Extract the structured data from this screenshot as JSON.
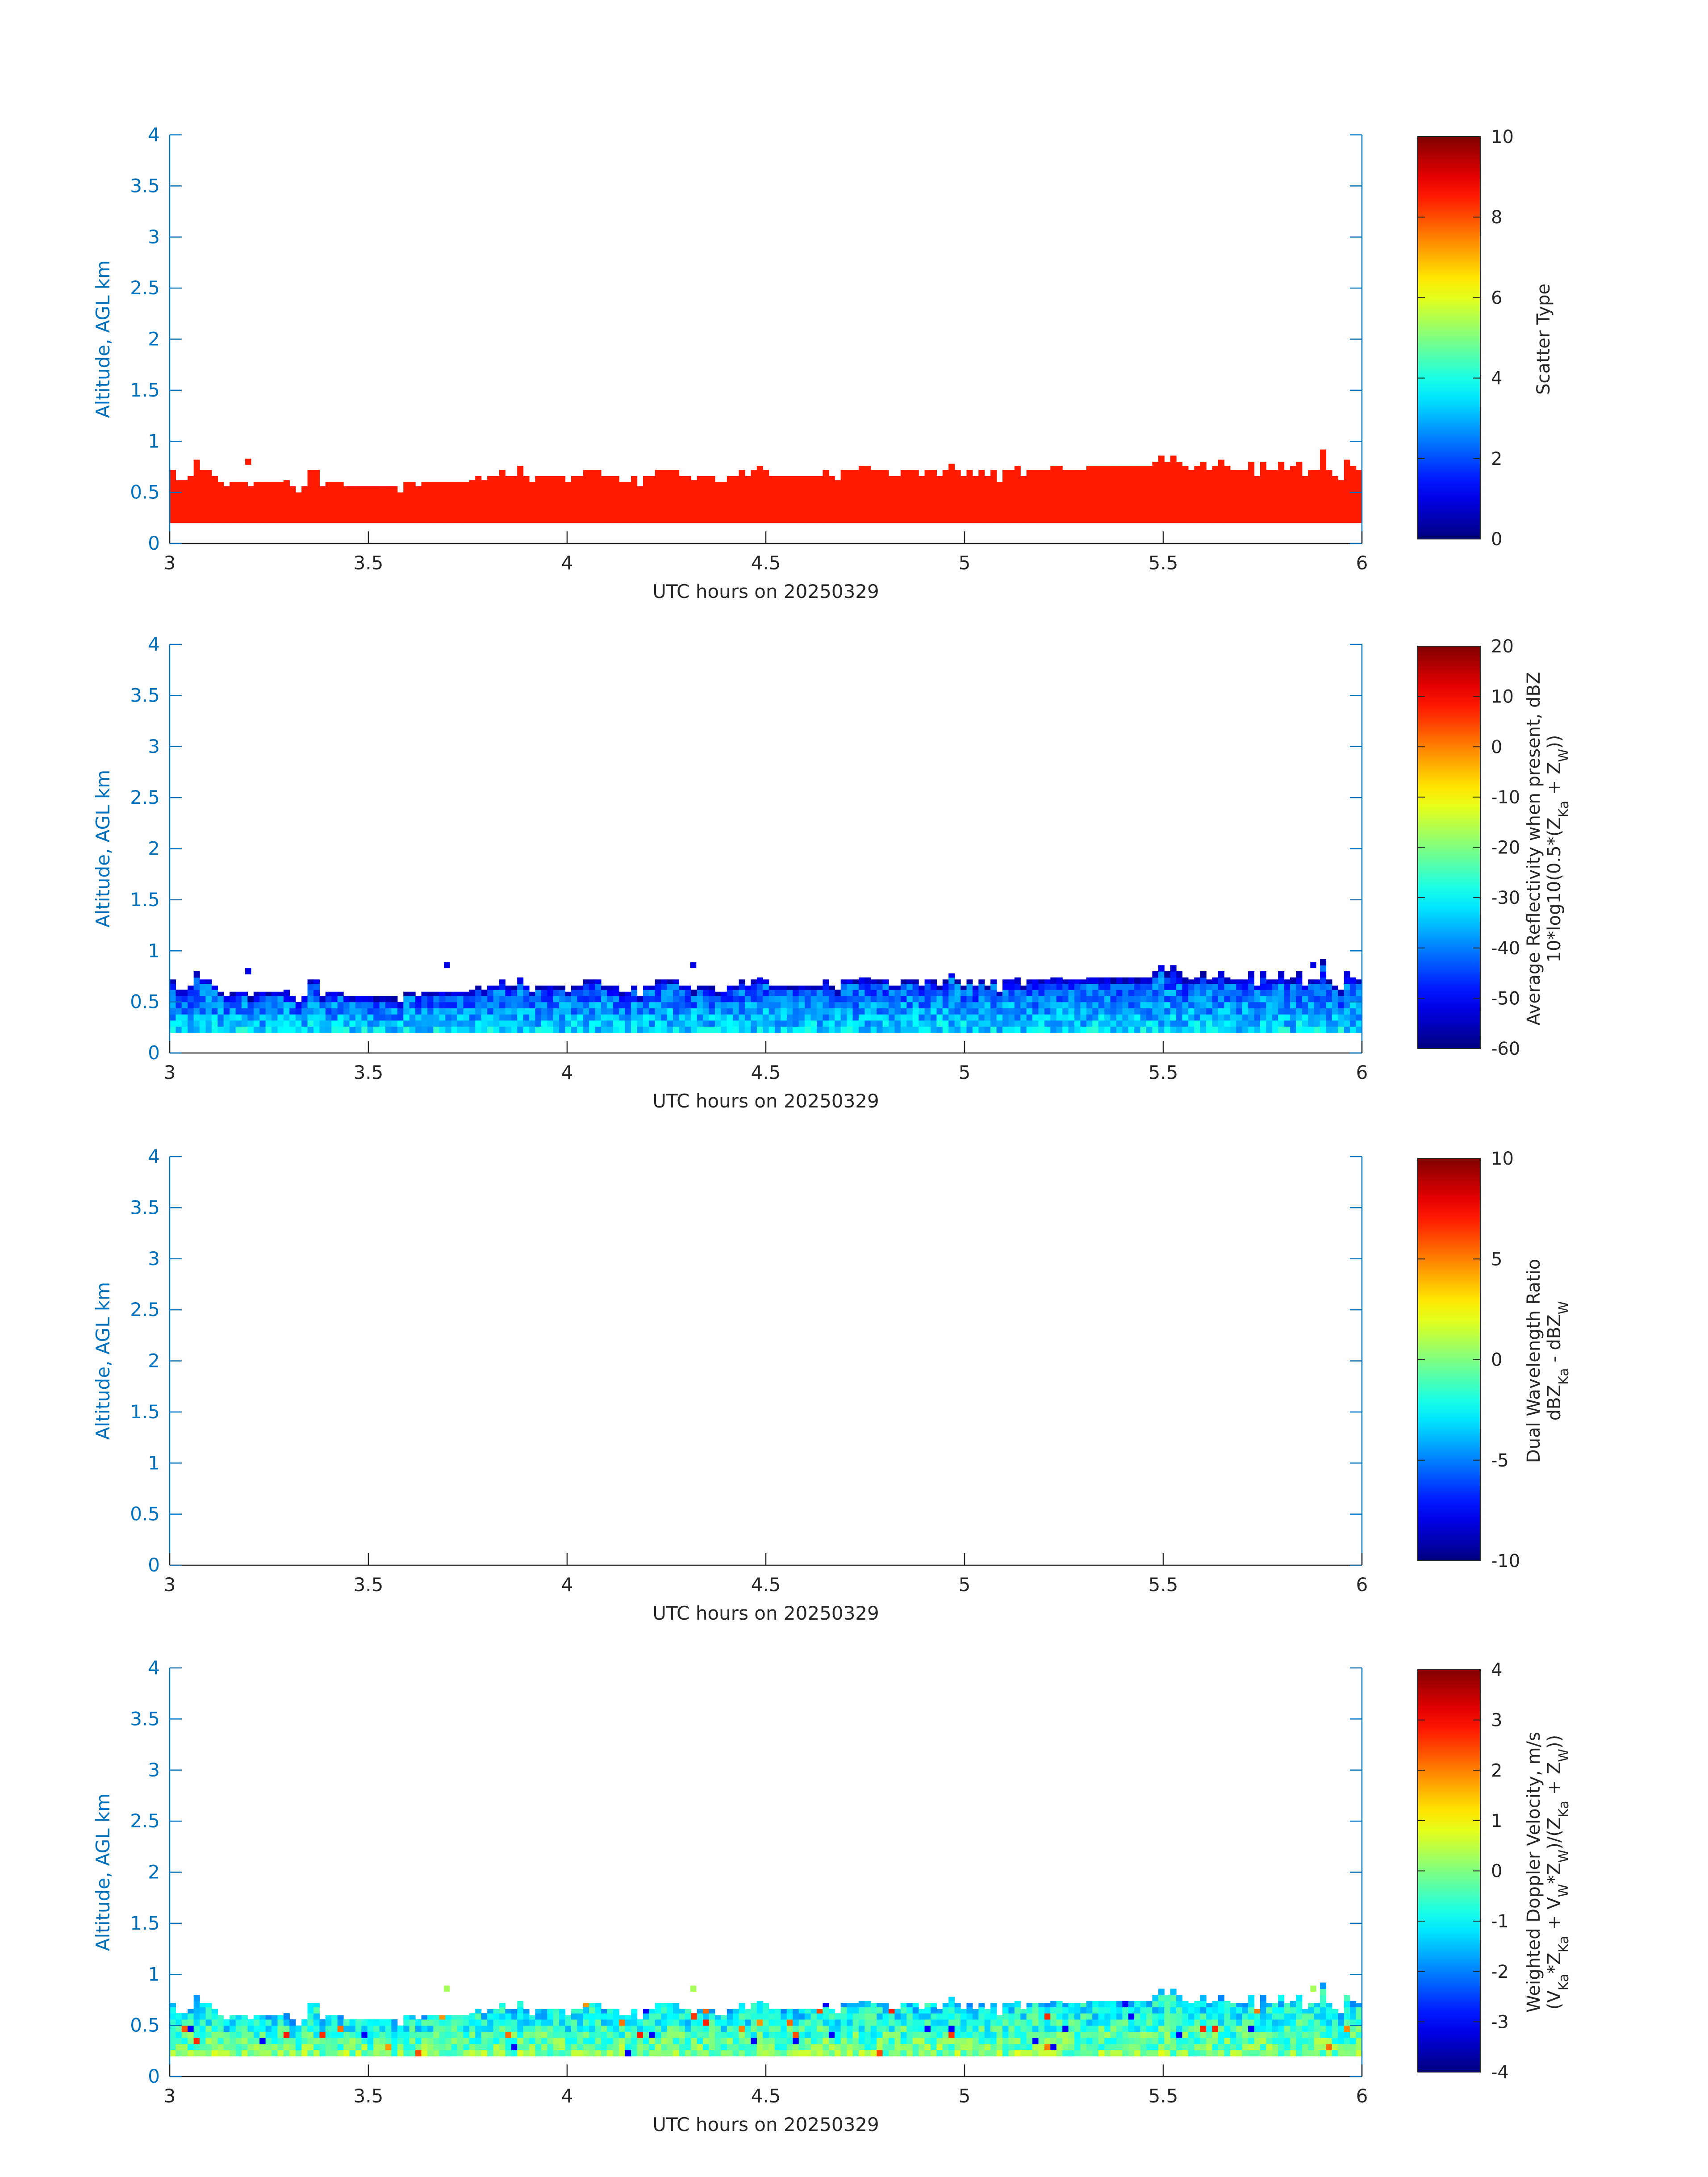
{
  "figure": {
    "panel_count": 4
  },
  "chart_data": [
    {
      "type": "heatmap",
      "xlabel": "UTC hours on 20250329",
      "ylabel": "Altitude, AGL km",
      "xlim": [
        3,
        6
      ],
      "ylim": [
        0,
        4
      ],
      "xticks": [
        "3",
        "3.5",
        "4",
        "4.5",
        "5",
        "5.5",
        "6"
      ],
      "yticks": [
        "0",
        "0.5",
        "1",
        "1.5",
        "2",
        "2.5",
        "3",
        "3.5",
        "4"
      ],
      "colorbar": {
        "label_lines": [
          "Scatter Type"
        ],
        "clim": [
          0,
          10
        ],
        "ticks": [
          "0",
          "2",
          "4",
          "6",
          "8",
          "10"
        ]
      },
      "field": "scatter_type",
      "layer_base_km": 0.2,
      "time_bin_h": 0.02,
      "description_value": 8.5,
      "tops": "cloud_tops",
      "extra_cells": [
        {
          "x": 3.19,
          "y": 0.8
        }
      ]
    },
    {
      "type": "heatmap",
      "xlabel": "UTC hours on 20250329",
      "ylabel": "Altitude, AGL km",
      "xlim": [
        3,
        6
      ],
      "ylim": [
        0,
        4
      ],
      "xticks": [
        "3",
        "3.5",
        "4",
        "4.5",
        "5",
        "5.5",
        "6"
      ],
      "yticks": [
        "0",
        "0.5",
        "1",
        "1.5",
        "2",
        "2.5",
        "3",
        "3.5",
        "4"
      ],
      "colorbar": {
        "label_lines": [
          "Average Reflectivity when present, dBZ",
          "10*log10(0.5*(Z",
          "Ka",
          " + Z",
          "W",
          "))"
        ],
        "clim": [
          -60,
          20
        ],
        "ticks": [
          "-60",
          "-50",
          "-40",
          "-30",
          "-20",
          "-10",
          "0",
          "10",
          "20"
        ]
      },
      "field": "reflectivity",
      "typical_range_dbz": [
        -50,
        -30
      ],
      "tops": "cloud_tops",
      "extra_cells": [
        {
          "x": 3.19,
          "y": 0.8
        },
        {
          "x": 3.69,
          "y": 0.86
        },
        {
          "x": 4.31,
          "y": 0.86
        },
        {
          "x": 5.87,
          "y": 0.86
        }
      ]
    },
    {
      "type": "heatmap",
      "xlabel": "UTC hours on 20250329",
      "ylabel": "Altitude, AGL km",
      "xlim": [
        3,
        6
      ],
      "ylim": [
        0,
        4
      ],
      "xticks": [
        "3",
        "3.5",
        "4",
        "4.5",
        "5",
        "5.5",
        "6"
      ],
      "yticks": [
        "0",
        "0.5",
        "1",
        "1.5",
        "2",
        "2.5",
        "3",
        "3.5",
        "4"
      ],
      "colorbar": {
        "label_lines": [
          "Dual Wavelength Ratio",
          "dBZ",
          "Ka",
          " - dBZ",
          "W"
        ],
        "clim": [
          -10,
          10
        ],
        "ticks": [
          "-10",
          "-5",
          "0",
          "5",
          "10"
        ]
      },
      "field": "dual_wavelength_ratio",
      "tops": "none"
    },
    {
      "type": "heatmap",
      "xlabel": "UTC hours on 20250329",
      "ylabel": "Altitude, AGL km",
      "xlim": [
        3,
        6
      ],
      "ylim": [
        0,
        4
      ],
      "xticks": [
        "3",
        "3.5",
        "4",
        "4.5",
        "5",
        "5.5",
        "6"
      ],
      "yticks": [
        "0",
        "0.5",
        "1",
        "1.5",
        "2",
        "2.5",
        "3",
        "3.5",
        "4"
      ],
      "colorbar": {
        "label_lines": [
          "Weighted Doppler Velocity, m/s",
          "(V",
          "Ka",
          "*Z",
          "Ka",
          " + V",
          "W",
          "*Z",
          "W",
          ")/(Z",
          "Ka",
          " + Z",
          "W",
          "))"
        ],
        "clim": [
          -4,
          4
        ],
        "ticks": [
          "-4",
          "-3",
          "-2",
          "-1",
          "0",
          "1",
          "2",
          "3",
          "4"
        ]
      },
      "field": "doppler_velocity",
      "typical_range_ms": [
        -1.5,
        0.5
      ],
      "tops": "cloud_tops",
      "extra_cells": [
        {
          "x": 3.69,
          "y": 0.86
        },
        {
          "x": 4.31,
          "y": 0.86
        },
        {
          "x": 5.87,
          "y": 0.86
        }
      ]
    }
  ],
  "cloud_tops_km": [
    0.72,
    0.62,
    0.62,
    0.66,
    0.82,
    0.72,
    0.72,
    0.66,
    0.6,
    0.56,
    0.6,
    0.6,
    0.6,
    0.56,
    0.6,
    0.6,
    0.6,
    0.6,
    0.6,
    0.62,
    0.56,
    0.5,
    0.56,
    0.72,
    0.72,
    0.56,
    0.6,
    0.6,
    0.6,
    0.56,
    0.56,
    0.56,
    0.56,
    0.56,
    0.56,
    0.56,
    0.56,
    0.56,
    0.5,
    0.6,
    0.6,
    0.56,
    0.6,
    0.6,
    0.6,
    0.6,
    0.6,
    0.6,
    0.6,
    0.6,
    0.62,
    0.66,
    0.62,
    0.66,
    0.66,
    0.72,
    0.66,
    0.66,
    0.76,
    0.66,
    0.6,
    0.66,
    0.66,
    0.66,
    0.66,
    0.66,
    0.6,
    0.66,
    0.66,
    0.72,
    0.72,
    0.72,
    0.66,
    0.66,
    0.66,
    0.6,
    0.6,
    0.66,
    0.56,
    0.66,
    0.66,
    0.72,
    0.72,
    0.72,
    0.72,
    0.66,
    0.66,
    0.62,
    0.66,
    0.66,
    0.66,
    0.6,
    0.6,
    0.66,
    0.66,
    0.72,
    0.66,
    0.72,
    0.76,
    0.72,
    0.66,
    0.66,
    0.66,
    0.66,
    0.66,
    0.66,
    0.66,
    0.66,
    0.66,
    0.72,
    0.66,
    0.62,
    0.72,
    0.72,
    0.72,
    0.76,
    0.76,
    0.72,
    0.72,
    0.72,
    0.66,
    0.66,
    0.72,
    0.72,
    0.72,
    0.66,
    0.72,
    0.72,
    0.66,
    0.72,
    0.78,
    0.72,
    0.66,
    0.72,
    0.66,
    0.72,
    0.66,
    0.72,
    0.6,
    0.72,
    0.72,
    0.76,
    0.66,
    0.72,
    0.72,
    0.72,
    0.72,
    0.76,
    0.76,
    0.72,
    0.72,
    0.72,
    0.72,
    0.76,
    0.76,
    0.76,
    0.76,
    0.76,
    0.76,
    0.76,
    0.76,
    0.76,
    0.76,
    0.76,
    0.8,
    0.86,
    0.8,
    0.86,
    0.8,
    0.76,
    0.72,
    0.76,
    0.8,
    0.72,
    0.76,
    0.82,
    0.76,
    0.72,
    0.72,
    0.72,
    0.8,
    0.66,
    0.8,
    0.72,
    0.72,
    0.8,
    0.72,
    0.76,
    0.8,
    0.66,
    0.72,
    0.72,
    0.92,
    0.72,
    0.66,
    0.62,
    0.82,
    0.76,
    0.72
  ]
}
